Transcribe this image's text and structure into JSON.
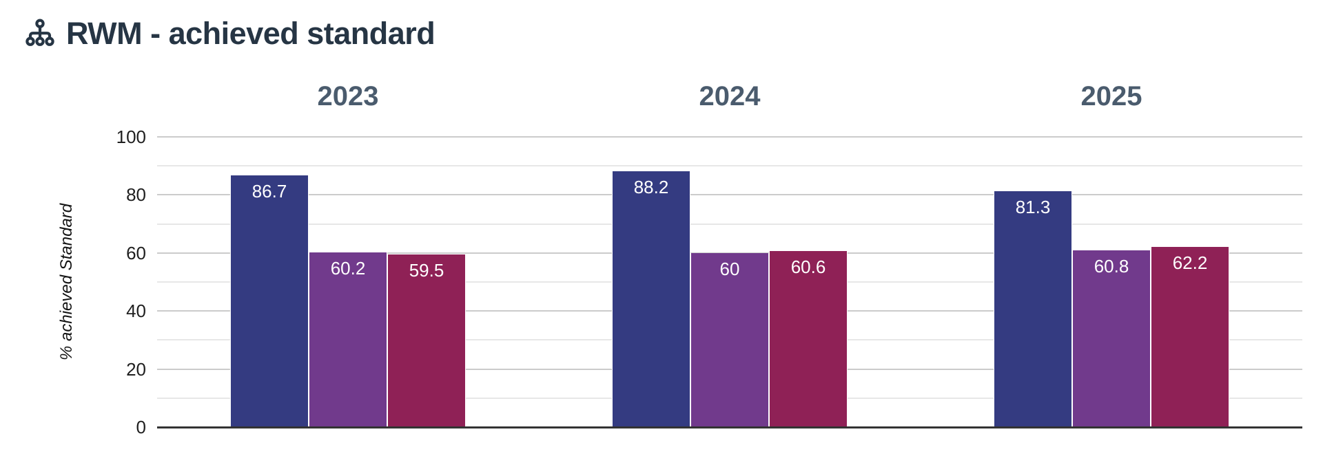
{
  "header": {
    "title": "RWM - achieved standard",
    "icon": "sitemap-icon"
  },
  "y_axis": {
    "label": "% achieved Standard",
    "tick_labels": [
      "0",
      "20",
      "40",
      "60",
      "80",
      "100"
    ]
  },
  "chart_data": {
    "type": "bar",
    "title": "RWM - achieved standard",
    "categories": [
      "2023",
      "2024",
      "2025"
    ],
    "series": [
      {
        "name": "series-1-dark-blue",
        "color": "#343b81",
        "values": [
          86.7,
          88.2,
          81.3
        ]
      },
      {
        "name": "series-2-purple",
        "color": "#713a8c",
        "values": [
          60.2,
          60,
          60.8
        ]
      },
      {
        "name": "series-3-crimson",
        "color": "#8f2156",
        "values": [
          59.5,
          60.6,
          62.2
        ]
      }
    ],
    "xlabel": "",
    "ylabel": "% achieved Standard",
    "ylim": [
      0,
      100
    ],
    "yticks": [
      0,
      20,
      40,
      60,
      80,
      100
    ],
    "minor_gridlines": [
      10,
      30,
      50,
      70,
      90
    ],
    "grid": true,
    "legend": "none",
    "bar_value_labels": "inside-top-white"
  },
  "colors": {
    "title": "#263544",
    "category_label": "#4a5b6d",
    "tick_label": "#1f1f1f",
    "gridline_major": "#cbcbcb",
    "gridline_minor": "#e7e7e7",
    "axis_line": "#333333",
    "bar_label_text": "#ffffff",
    "background": "#ffffff"
  }
}
